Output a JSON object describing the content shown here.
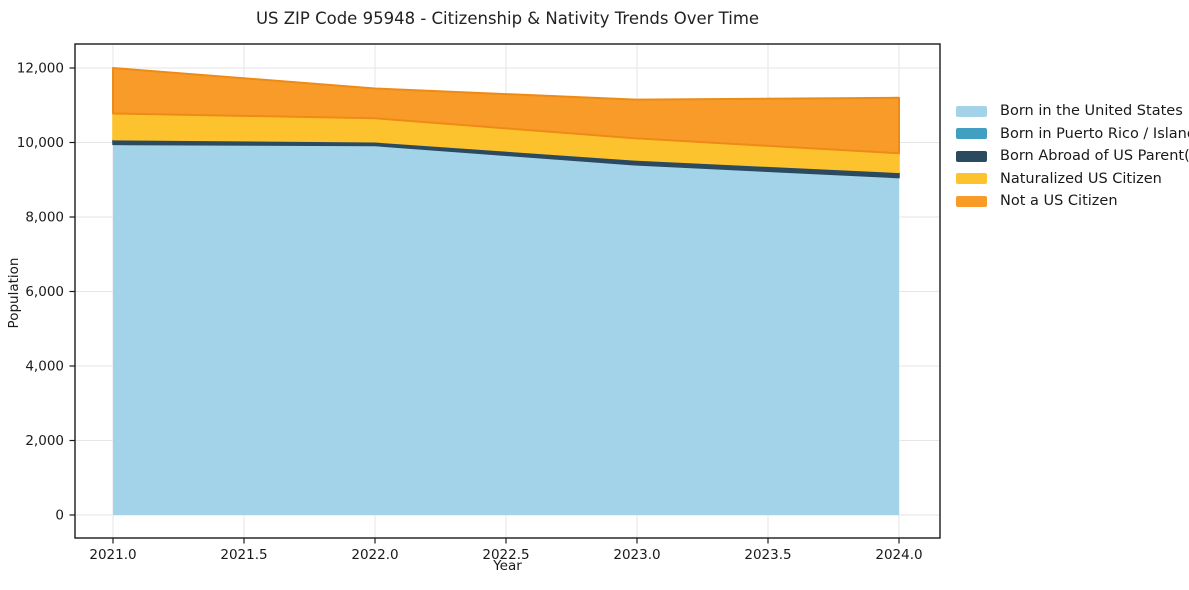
{
  "title": "US ZIP Code 95948 - Citizenship & Nativity Trends Over Time",
  "chart_data": {
    "type": "area",
    "stacked": true,
    "title": "US ZIP Code 95948 - Citizenship & Nativity Trends Over Time",
    "xlabel": "Year",
    "ylabel": "Population",
    "x": [
      2021,
      2022,
      2023,
      2024
    ],
    "series": [
      {
        "name": "Born in the United States",
        "values": [
          9950,
          9920,
          9400,
          9060
        ]
      },
      {
        "name": "Born in Puerto Rico / Islands",
        "values": [
          0,
          0,
          0,
          0
        ]
      },
      {
        "name": "Born Abroad of US Parent(s)",
        "values": [
          130,
          100,
          130,
          140
        ]
      },
      {
        "name": "Naturalized US Citizen",
        "values": [
          700,
          630,
          580,
          510
        ]
      },
      {
        "name": "Not a US Citizen",
        "values": [
          1220,
          800,
          1040,
          1490
        ]
      }
    ],
    "stacked_totals": [
      12000,
      11450,
      11150,
      11200
    ],
    "colors": [
      "#a3d3e8",
      "#41a0c1",
      "#2b4a5f",
      "#fdc32f",
      "#f89b28"
    ],
    "edge_colors": [
      null,
      null,
      "#2b4a5f",
      "#fdc32f",
      "#ee8b16"
    ],
    "xlim": [
      2020.85,
      2024.15
    ],
    "ylim": [
      0,
      12000
    ],
    "xtick_labels": [
      "2021.0",
      "2021.5",
      "2022.0",
      "2022.5",
      "2023.0",
      "2023.5",
      "2024.0"
    ],
    "ytick_labels": [
      "0",
      "2,000",
      "4,000",
      "6,000",
      "8,000",
      "10,000",
      "12,000"
    ],
    "grid": true,
    "grid_color": "#e6e6e6",
    "frame_color": "#1a1a1a",
    "legend_position": "outside-right"
  }
}
